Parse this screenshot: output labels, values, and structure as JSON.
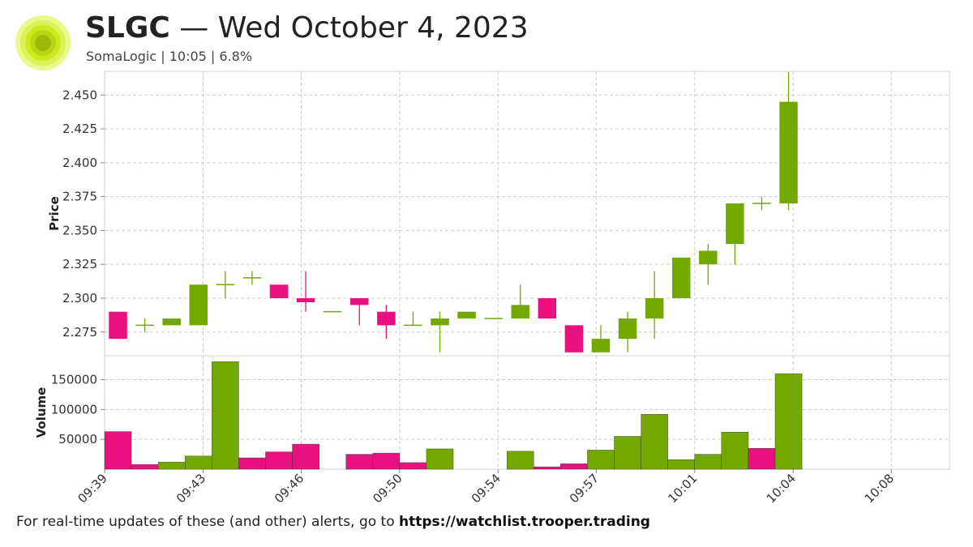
{
  "header": {
    "ticker": "SLGC",
    "separator": "—",
    "date": "Wed October 4, 2023",
    "subtitle": "SomaLogic | 10:05 | 6.8%"
  },
  "footer": {
    "text": "For real-time updates of these (and other) alerts, go to",
    "link": "https://watchlist.trooper.trading"
  },
  "colors": {
    "up": "#72a800",
    "down": "#e8117f",
    "logo": "#d4ec1a",
    "grid": "#cccccc"
  },
  "chart_data": [
    {
      "type": "candlestick",
      "ylabel": "Price",
      "ylim": [
        2.2575,
        2.4675
      ],
      "yticks": [
        2.275,
        2.3,
        2.325,
        2.35,
        2.375,
        2.4,
        2.425,
        2.45
      ],
      "ytick_labels": [
        "2.275",
        "2.300",
        "2.325",
        "2.350",
        "2.375",
        "2.400",
        "2.425",
        "2.450"
      ],
      "xticks": [
        "09:39",
        "09:43",
        "09:46",
        "09:50",
        "09:54",
        "09:57",
        "10:01",
        "10:04",
        "10:08"
      ],
      "xtick_minutes": [
        0,
        3.67,
        7.33,
        11,
        14.67,
        18.33,
        22,
        25.67,
        29.33
      ],
      "xlim_minutes": [
        0,
        31.5
      ],
      "grid": true,
      "candles": [
        {
          "t": "09:39",
          "o": 2.29,
          "h": 2.29,
          "l": 2.27,
          "c": 2.27
        },
        {
          "t": "09:40",
          "o": 2.28,
          "h": 2.285,
          "l": 2.275,
          "c": 2.28
        },
        {
          "t": "09:41",
          "o": 2.28,
          "h": 2.285,
          "l": 2.28,
          "c": 2.285
        },
        {
          "t": "09:42",
          "o": 2.28,
          "h": 2.31,
          "l": 2.28,
          "c": 2.31
        },
        {
          "t": "09:43",
          "o": 2.31,
          "h": 2.32,
          "l": 2.3,
          "c": 2.31
        },
        {
          "t": "09:44",
          "o": 2.315,
          "h": 2.32,
          "l": 2.31,
          "c": 2.315
        },
        {
          "t": "09:45",
          "o": 2.31,
          "h": 2.31,
          "l": 2.3,
          "c": 2.3
        },
        {
          "t": "09:46",
          "o": 2.3,
          "h": 2.32,
          "l": 2.29,
          "c": 2.297
        },
        {
          "t": "09:47",
          "o": 2.29,
          "h": 2.29,
          "l": 2.29,
          "c": 2.29
        },
        {
          "t": "09:48",
          "o": 2.3,
          "h": 2.3,
          "l": 2.28,
          "c": 2.295
        },
        {
          "t": "09:49",
          "o": 2.29,
          "h": 2.295,
          "l": 2.27,
          "c": 2.28
        },
        {
          "t": "09:50",
          "o": 2.28,
          "h": 2.29,
          "l": 2.28,
          "c": 2.28
        },
        {
          "t": "09:51",
          "o": 2.28,
          "h": 2.29,
          "l": 2.26,
          "c": 2.285
        },
        {
          "t": "09:52",
          "o": 2.285,
          "h": 2.29,
          "l": 2.285,
          "c": 2.29
        },
        {
          "t": "09:53",
          "o": 2.285,
          "h": 2.285,
          "l": 2.285,
          "c": 2.285
        },
        {
          "t": "09:54",
          "o": 2.285,
          "h": 2.31,
          "l": 2.285,
          "c": 2.295
        },
        {
          "t": "09:55",
          "o": 2.3,
          "h": 2.3,
          "l": 2.285,
          "c": 2.285
        },
        {
          "t": "09:56",
          "o": 2.28,
          "h": 2.28,
          "l": 2.26,
          "c": 2.26
        },
        {
          "t": "09:57",
          "o": 2.26,
          "h": 2.28,
          "l": 2.26,
          "c": 2.27
        },
        {
          "t": "09:58",
          "o": 2.27,
          "h": 2.29,
          "l": 2.26,
          "c": 2.285
        },
        {
          "t": "09:59",
          "o": 2.285,
          "h": 2.32,
          "l": 2.27,
          "c": 2.3
        },
        {
          "t": "10:00",
          "o": 2.3,
          "h": 2.33,
          "l": 2.3,
          "c": 2.33
        },
        {
          "t": "10:01",
          "o": 2.325,
          "h": 2.34,
          "l": 2.31,
          "c": 2.335
        },
        {
          "t": "10:02",
          "o": 2.34,
          "h": 2.37,
          "l": 2.325,
          "c": 2.37
        },
        {
          "t": "10:03",
          "o": 2.37,
          "h": 2.375,
          "l": 2.365,
          "c": 2.37
        },
        {
          "t": "10:04",
          "o": 2.37,
          "h": 2.467,
          "l": 2.365,
          "c": 2.445
        }
      ]
    },
    {
      "type": "bar",
      "ylabel": "Volume",
      "ylim": [
        0,
        190000
      ],
      "yticks": [
        50000,
        100000,
        150000
      ],
      "ytick_labels": [
        "50000",
        "100000",
        "150000"
      ],
      "bars": [
        {
          "t": "09:39",
          "v": 63000,
          "dir": "down"
        },
        {
          "t": "09:40",
          "v": 8000,
          "dir": "down"
        },
        {
          "t": "09:41",
          "v": 12000,
          "dir": "up"
        },
        {
          "t": "09:42",
          "v": 22000,
          "dir": "up"
        },
        {
          "t": "09:43",
          "v": 180000,
          "dir": "up"
        },
        {
          "t": "09:44",
          "v": 19000,
          "dir": "down"
        },
        {
          "t": "09:45",
          "v": 29000,
          "dir": "down"
        },
        {
          "t": "09:46",
          "v": 42000,
          "dir": "down"
        },
        {
          "t": "09:47",
          "v": 0,
          "dir": "down"
        },
        {
          "t": "09:48",
          "v": 25000,
          "dir": "down"
        },
        {
          "t": "09:49",
          "v": 27000,
          "dir": "down"
        },
        {
          "t": "09:50",
          "v": 11000,
          "dir": "down"
        },
        {
          "t": "09:51",
          "v": 34000,
          "dir": "up"
        },
        {
          "t": "09:52",
          "v": 0,
          "dir": "up"
        },
        {
          "t": "09:53",
          "v": 0,
          "dir": "up"
        },
        {
          "t": "09:54",
          "v": 30000,
          "dir": "up"
        },
        {
          "t": "09:55",
          "v": 4000,
          "dir": "down"
        },
        {
          "t": "09:56",
          "v": 9000,
          "dir": "down"
        },
        {
          "t": "09:57",
          "v": 32000,
          "dir": "up"
        },
        {
          "t": "09:58",
          "v": 55000,
          "dir": "up"
        },
        {
          "t": "09:59",
          "v": 92000,
          "dir": "up"
        },
        {
          "t": "10:00",
          "v": 16000,
          "dir": "up"
        },
        {
          "t": "10:01",
          "v": 25000,
          "dir": "up"
        },
        {
          "t": "10:02",
          "v": 62000,
          "dir": "up"
        },
        {
          "t": "10:03",
          "v": 35000,
          "dir": "down"
        },
        {
          "t": "10:04",
          "v": 160000,
          "dir": "up"
        }
      ]
    }
  ]
}
